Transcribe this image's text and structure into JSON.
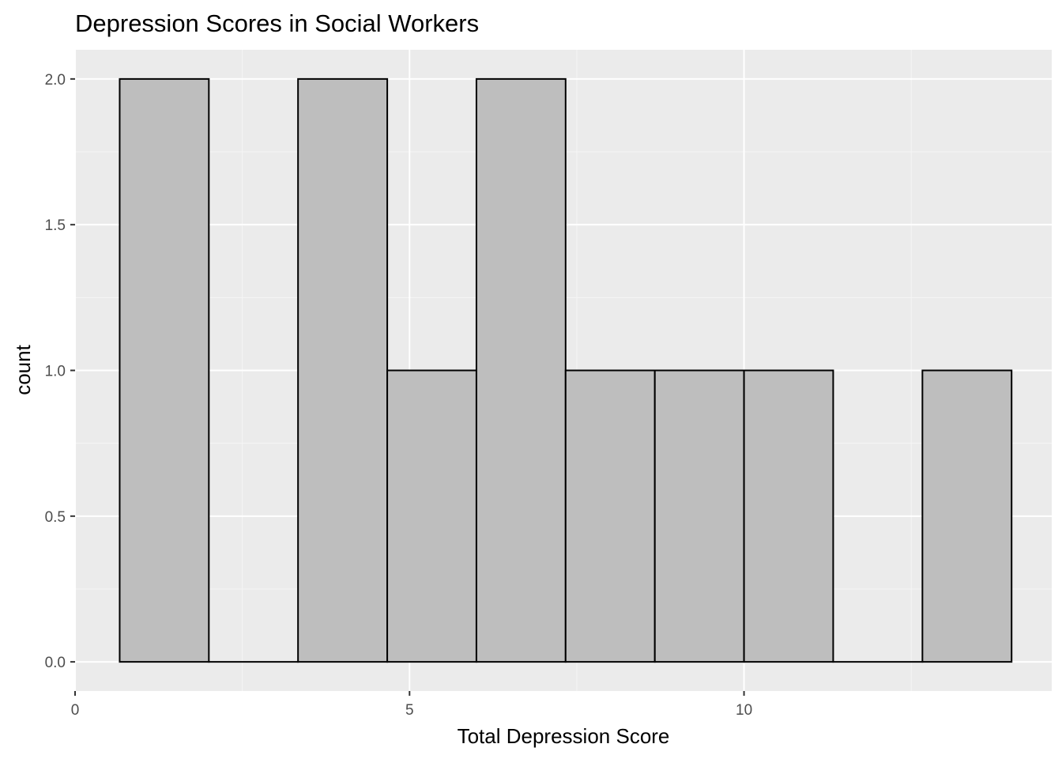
{
  "chart_data": {
    "type": "bar",
    "subtype": "histogram",
    "title": "Depression Scores in Social Workers",
    "xlabel": "Total Depression Score",
    "ylabel": "count",
    "xlim": [
      0,
      14.6
    ],
    "ylim": [
      -0.1,
      2.1
    ],
    "x_ticks": [
      {
        "value": 0,
        "label": "0"
      },
      {
        "value": 5,
        "label": "5"
      },
      {
        "value": 10,
        "label": "10"
      }
    ],
    "y_ticks": [
      {
        "value": 0,
        "label": "0.0"
      },
      {
        "value": 0.5,
        "label": "0.5"
      },
      {
        "value": 1,
        "label": "1.0"
      },
      {
        "value": 1.5,
        "label": "1.5"
      },
      {
        "value": 2,
        "label": "2.0"
      }
    ],
    "bins": [
      {
        "x_start": 0.667,
        "x_end": 2.0,
        "count": 2
      },
      {
        "x_start": 2.0,
        "x_end": 3.333,
        "count": 0
      },
      {
        "x_start": 3.333,
        "x_end": 4.667,
        "count": 2
      },
      {
        "x_start": 4.667,
        "x_end": 6.0,
        "count": 1
      },
      {
        "x_start": 6.0,
        "x_end": 7.333,
        "count": 2
      },
      {
        "x_start": 7.333,
        "x_end": 8.667,
        "count": 1
      },
      {
        "x_start": 8.667,
        "x_end": 10.0,
        "count": 1
      },
      {
        "x_start": 10.0,
        "x_end": 11.333,
        "count": 1
      },
      {
        "x_start": 11.333,
        "x_end": 12.667,
        "count": 0
      },
      {
        "x_start": 12.667,
        "x_end": 14.0,
        "count": 1
      }
    ],
    "grid": true,
    "legend": "none",
    "colors": {
      "panel_background": "#ebebeb",
      "grid_major": "#ffffff",
      "grid_minor": "#f5f5f5",
      "bar_fill": "#bebebe",
      "bar_outline": "#000000",
      "tick_mark": "#333333"
    }
  }
}
